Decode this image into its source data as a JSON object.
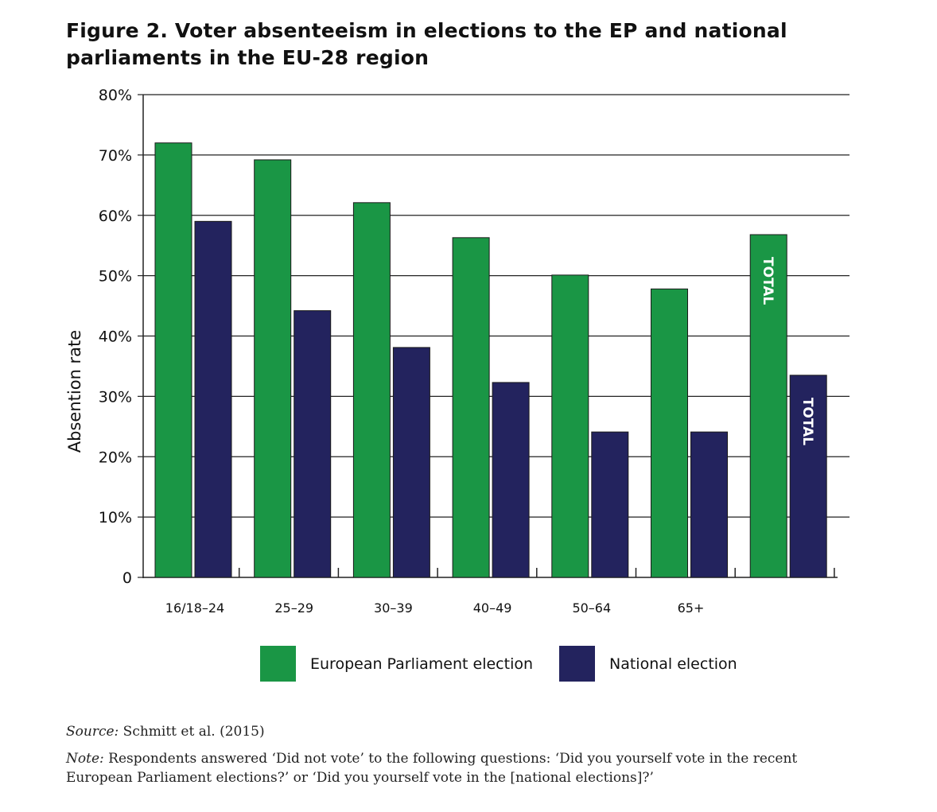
{
  "title": "Figure 2. Voter absenteeism in elections to the EP and national parliaments in the EU-28 region",
  "chart_data": {
    "type": "bar",
    "categories": [
      "16/18–24",
      "25–29",
      "30–39",
      "40–49",
      "50–64",
      "65+",
      ""
    ],
    "series": [
      {
        "name": "European Parliament election",
        "values": [
          72,
          69.2,
          62.1,
          56.3,
          50.1,
          47.8,
          56.8
        ],
        "color": "#1a9645"
      },
      {
        "name": "National election",
        "values": [
          59,
          44.2,
          38.1,
          32.3,
          24.1,
          24.1,
          33.5
        ],
        "color": "#23235e"
      }
    ],
    "bar_labels": [
      {
        "category_index": 6,
        "series_index": 0,
        "text": "TOTAL"
      },
      {
        "category_index": 6,
        "series_index": 1,
        "text": "TOTAL"
      }
    ],
    "ylabel": "Absention rate",
    "xlabel": "",
    "ylim": [
      0,
      80
    ],
    "yticks": [
      {
        "value": 0,
        "label": "0"
      },
      {
        "value": 10,
        "label": "10%"
      },
      {
        "value": 20,
        "label": "20%"
      },
      {
        "value": 30,
        "label": "30%"
      },
      {
        "value": 40,
        "label": "40%"
      },
      {
        "value": 50,
        "label": "50%"
      },
      {
        "value": 60,
        "label": "60%"
      },
      {
        "value": 70,
        "label": "70%"
      },
      {
        "value": 80,
        "label": "80%"
      }
    ],
    "grid": true,
    "legend_position": "bottom"
  },
  "legend": {
    "ep_label": "European Parliament election",
    "national_label": "National election"
  },
  "source": {
    "prefix": "Source:",
    "text": " Schmitt et al. (2015)"
  },
  "note": {
    "prefix": "Note:",
    "text": " Respondents answered ‘Did not vote’ to the following questions: ‘Did you yourself vote in the recent European Parliament elections?’ or ‘Did you yourself vote in the [national elections]?’"
  }
}
